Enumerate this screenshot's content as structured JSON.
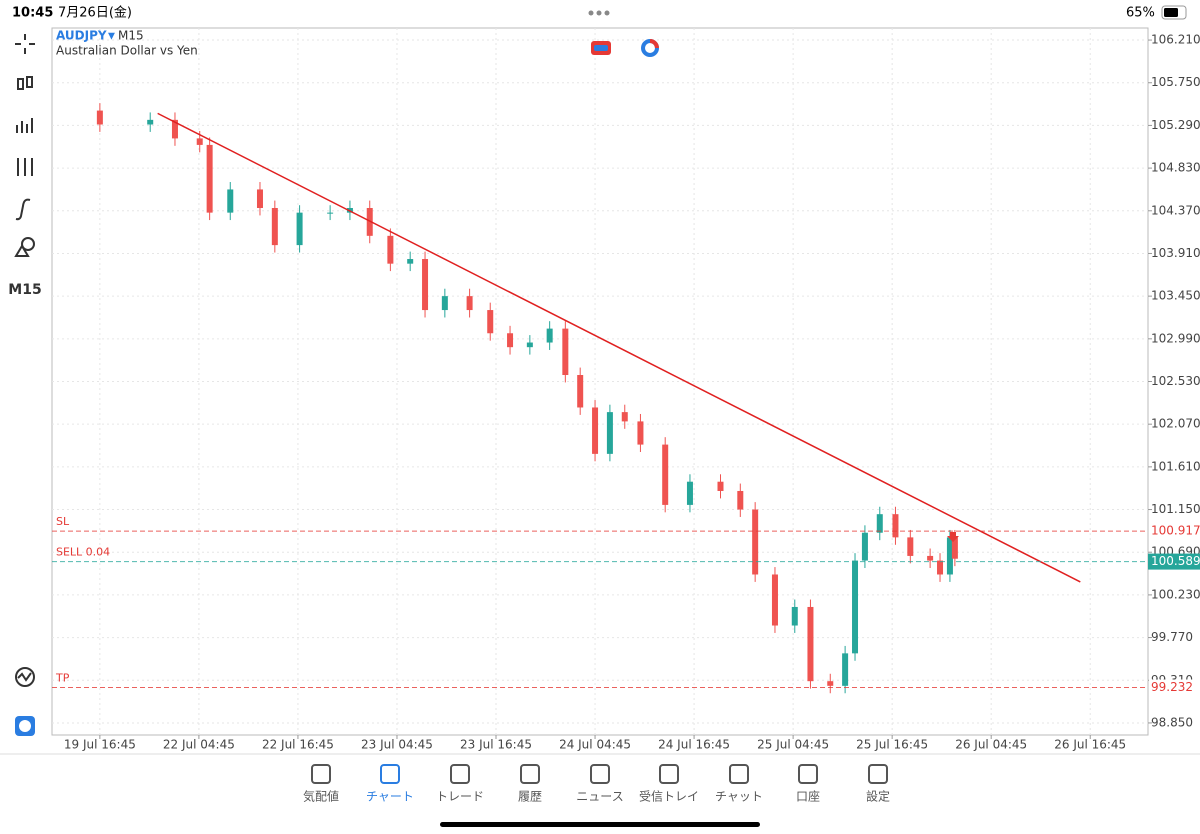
{
  "status_bar": {
    "time": "10:45",
    "date": "7月26日(金)",
    "battery": "65%"
  },
  "toolbar": {
    "timeframe": "M15"
  },
  "chart_data": {
    "type": "candlestick",
    "symbol": "AUDJPY",
    "timeframe": "M15",
    "subtitle": "Australian Dollar vs Yen",
    "up_color": "#26a69a",
    "down_color": "#ef5350",
    "grid": true,
    "x": [
      0,
      6.1,
      9.1,
      12.1,
      13.3,
      15.8,
      19.4,
      21.2,
      24.2,
      27.9,
      30.3,
      32.7,
      35.2,
      37.6,
      39.4,
      41.8,
      44.8,
      47.3,
      49.7,
      52.1,
      54.5,
      56.4,
      58.2,
      60,
      61.8,
      63.6,
      65.5,
      68.5,
      71.5,
      75.2,
      77.6,
      79.4,
      81.8,
      84.2,
      86.1,
      88.5,
      90.3,
      91.5,
      92.7,
      94.5,
      96.4,
      98.2,
      100.6,
      101.8,
      103,
      103.6
    ],
    "open": [
      105.45,
      105.3,
      105.35,
      105.15,
      105.08,
      104.35,
      104.6,
      104.4,
      104.0,
      104.35,
      104.35,
      104.4,
      104.1,
      103.8,
      103.85,
      103.3,
      103.45,
      103.3,
      103.05,
      102.9,
      102.95,
      103.1,
      102.6,
      102.25,
      101.75,
      102.2,
      102.1,
      101.85,
      101.2,
      101.45,
      101.35,
      101.15,
      100.45,
      99.9,
      100.1,
      99.3,
      99.25,
      99.6,
      100.6,
      100.9,
      101.1,
      100.85,
      100.65,
      100.6,
      100.45,
      100.85
    ],
    "high": [
      105.53,
      105.43,
      105.43,
      105.23,
      105.16,
      104.68,
      104.68,
      104.48,
      104.43,
      104.43,
      104.48,
      104.48,
      104.18,
      103.93,
      103.93,
      103.53,
      103.53,
      103.38,
      103.13,
      103.03,
      103.18,
      103.18,
      102.68,
      102.33,
      102.28,
      102.28,
      102.18,
      101.93,
      101.53,
      101.53,
      101.43,
      101.23,
      100.53,
      100.18,
      100.18,
      99.38,
      99.68,
      100.68,
      100.98,
      101.18,
      101.18,
      100.93,
      100.73,
      100.68,
      100.93,
      100.93
    ],
    "low": [
      105.22,
      105.22,
      105.07,
      105.0,
      104.27,
      104.27,
      104.32,
      103.92,
      103.92,
      104.27,
      104.27,
      104.02,
      103.72,
      103.72,
      103.22,
      103.22,
      103.22,
      102.97,
      102.82,
      102.82,
      102.87,
      102.52,
      102.17,
      101.67,
      101.67,
      102.02,
      101.77,
      101.12,
      101.12,
      101.27,
      101.07,
      100.37,
      99.82,
      99.82,
      99.22,
      99.17,
      99.17,
      99.52,
      100.52,
      100.82,
      100.77,
      100.57,
      100.52,
      100.37,
      100.37,
      100.54
    ],
    "close": [
      105.3,
      105.35,
      105.15,
      105.08,
      104.35,
      104.6,
      104.4,
      104.0,
      104.35,
      104.35,
      104.4,
      104.1,
      103.8,
      103.85,
      103.3,
      103.45,
      103.3,
      103.05,
      102.9,
      102.95,
      103.1,
      102.6,
      102.25,
      101.75,
      102.2,
      102.1,
      101.85,
      101.2,
      101.45,
      101.35,
      101.15,
      100.45,
      99.9,
      100.1,
      99.3,
      99.25,
      99.6,
      100.6,
      100.9,
      101.1,
      100.85,
      100.65,
      100.6,
      100.45,
      100.85,
      100.62
    ],
    "xlim": [
      -5.8,
      127
    ],
    "xticks": [
      {
        "value": 0,
        "label": "19 Jul 16:45"
      },
      {
        "value": 12,
        "label": "22 Jul 04:45"
      },
      {
        "value": 24,
        "label": "22 Jul 16:45"
      },
      {
        "value": 36,
        "label": "23 Jul 04:45"
      },
      {
        "value": 48,
        "label": "23 Jul 16:45"
      },
      {
        "value": 60,
        "label": "24 Jul 04:45"
      },
      {
        "value": 72,
        "label": "24 Jul 16:45"
      },
      {
        "value": 84,
        "label": "25 Jul 04:45"
      },
      {
        "value": 96,
        "label": "25 Jul 16:45"
      },
      {
        "value": 108,
        "label": "26 Jul 04:45"
      },
      {
        "value": 120,
        "label": "26 Jul 16:45"
      }
    ],
    "ylim": [
      98.72,
      106.34
    ],
    "yticks": [
      {
        "value": 106.21,
        "label": "106.210"
      },
      {
        "value": 105.75,
        "label": "105.750"
      },
      {
        "value": 105.29,
        "label": "105.290"
      },
      {
        "value": 104.83,
        "label": "104.830"
      },
      {
        "value": 104.37,
        "label": "104.370"
      },
      {
        "value": 103.91,
        "label": "103.910"
      },
      {
        "value": 103.45,
        "label": "103.450"
      },
      {
        "value": 102.99,
        "label": "102.990"
      },
      {
        "value": 102.53,
        "label": "102.530"
      },
      {
        "value": 102.07,
        "label": "102.070"
      },
      {
        "value": 101.61,
        "label": "101.610"
      },
      {
        "value": 101.15,
        "label": "101.150"
      },
      {
        "value": 100.69,
        "label": "100.690"
      },
      {
        "value": 100.23,
        "label": "100.230"
      },
      {
        "value": 99.77,
        "label": "99.770"
      },
      {
        "value": 99.31,
        "label": "99.310"
      },
      {
        "value": 98.85,
        "label": "98.850"
      }
    ],
    "levels": [
      {
        "label": "SL",
        "value": 100.917,
        "color": "#e53935"
      },
      {
        "label": "SELL 0.04",
        "value": 100.589,
        "color": "#26a69a"
      },
      {
        "label": "TP",
        "value": 99.232,
        "color": "#e53935"
      }
    ],
    "trendline": {
      "x": [
        7.0,
        118.8
      ],
      "y": [
        105.42,
        100.37
      ],
      "color": "#e02020"
    }
  },
  "bottom_nav": [
    "気配値",
    "チャート",
    "トレード",
    "履歴",
    "ニュース",
    "受信トレイ",
    "チャット",
    "口座",
    "設定"
  ]
}
